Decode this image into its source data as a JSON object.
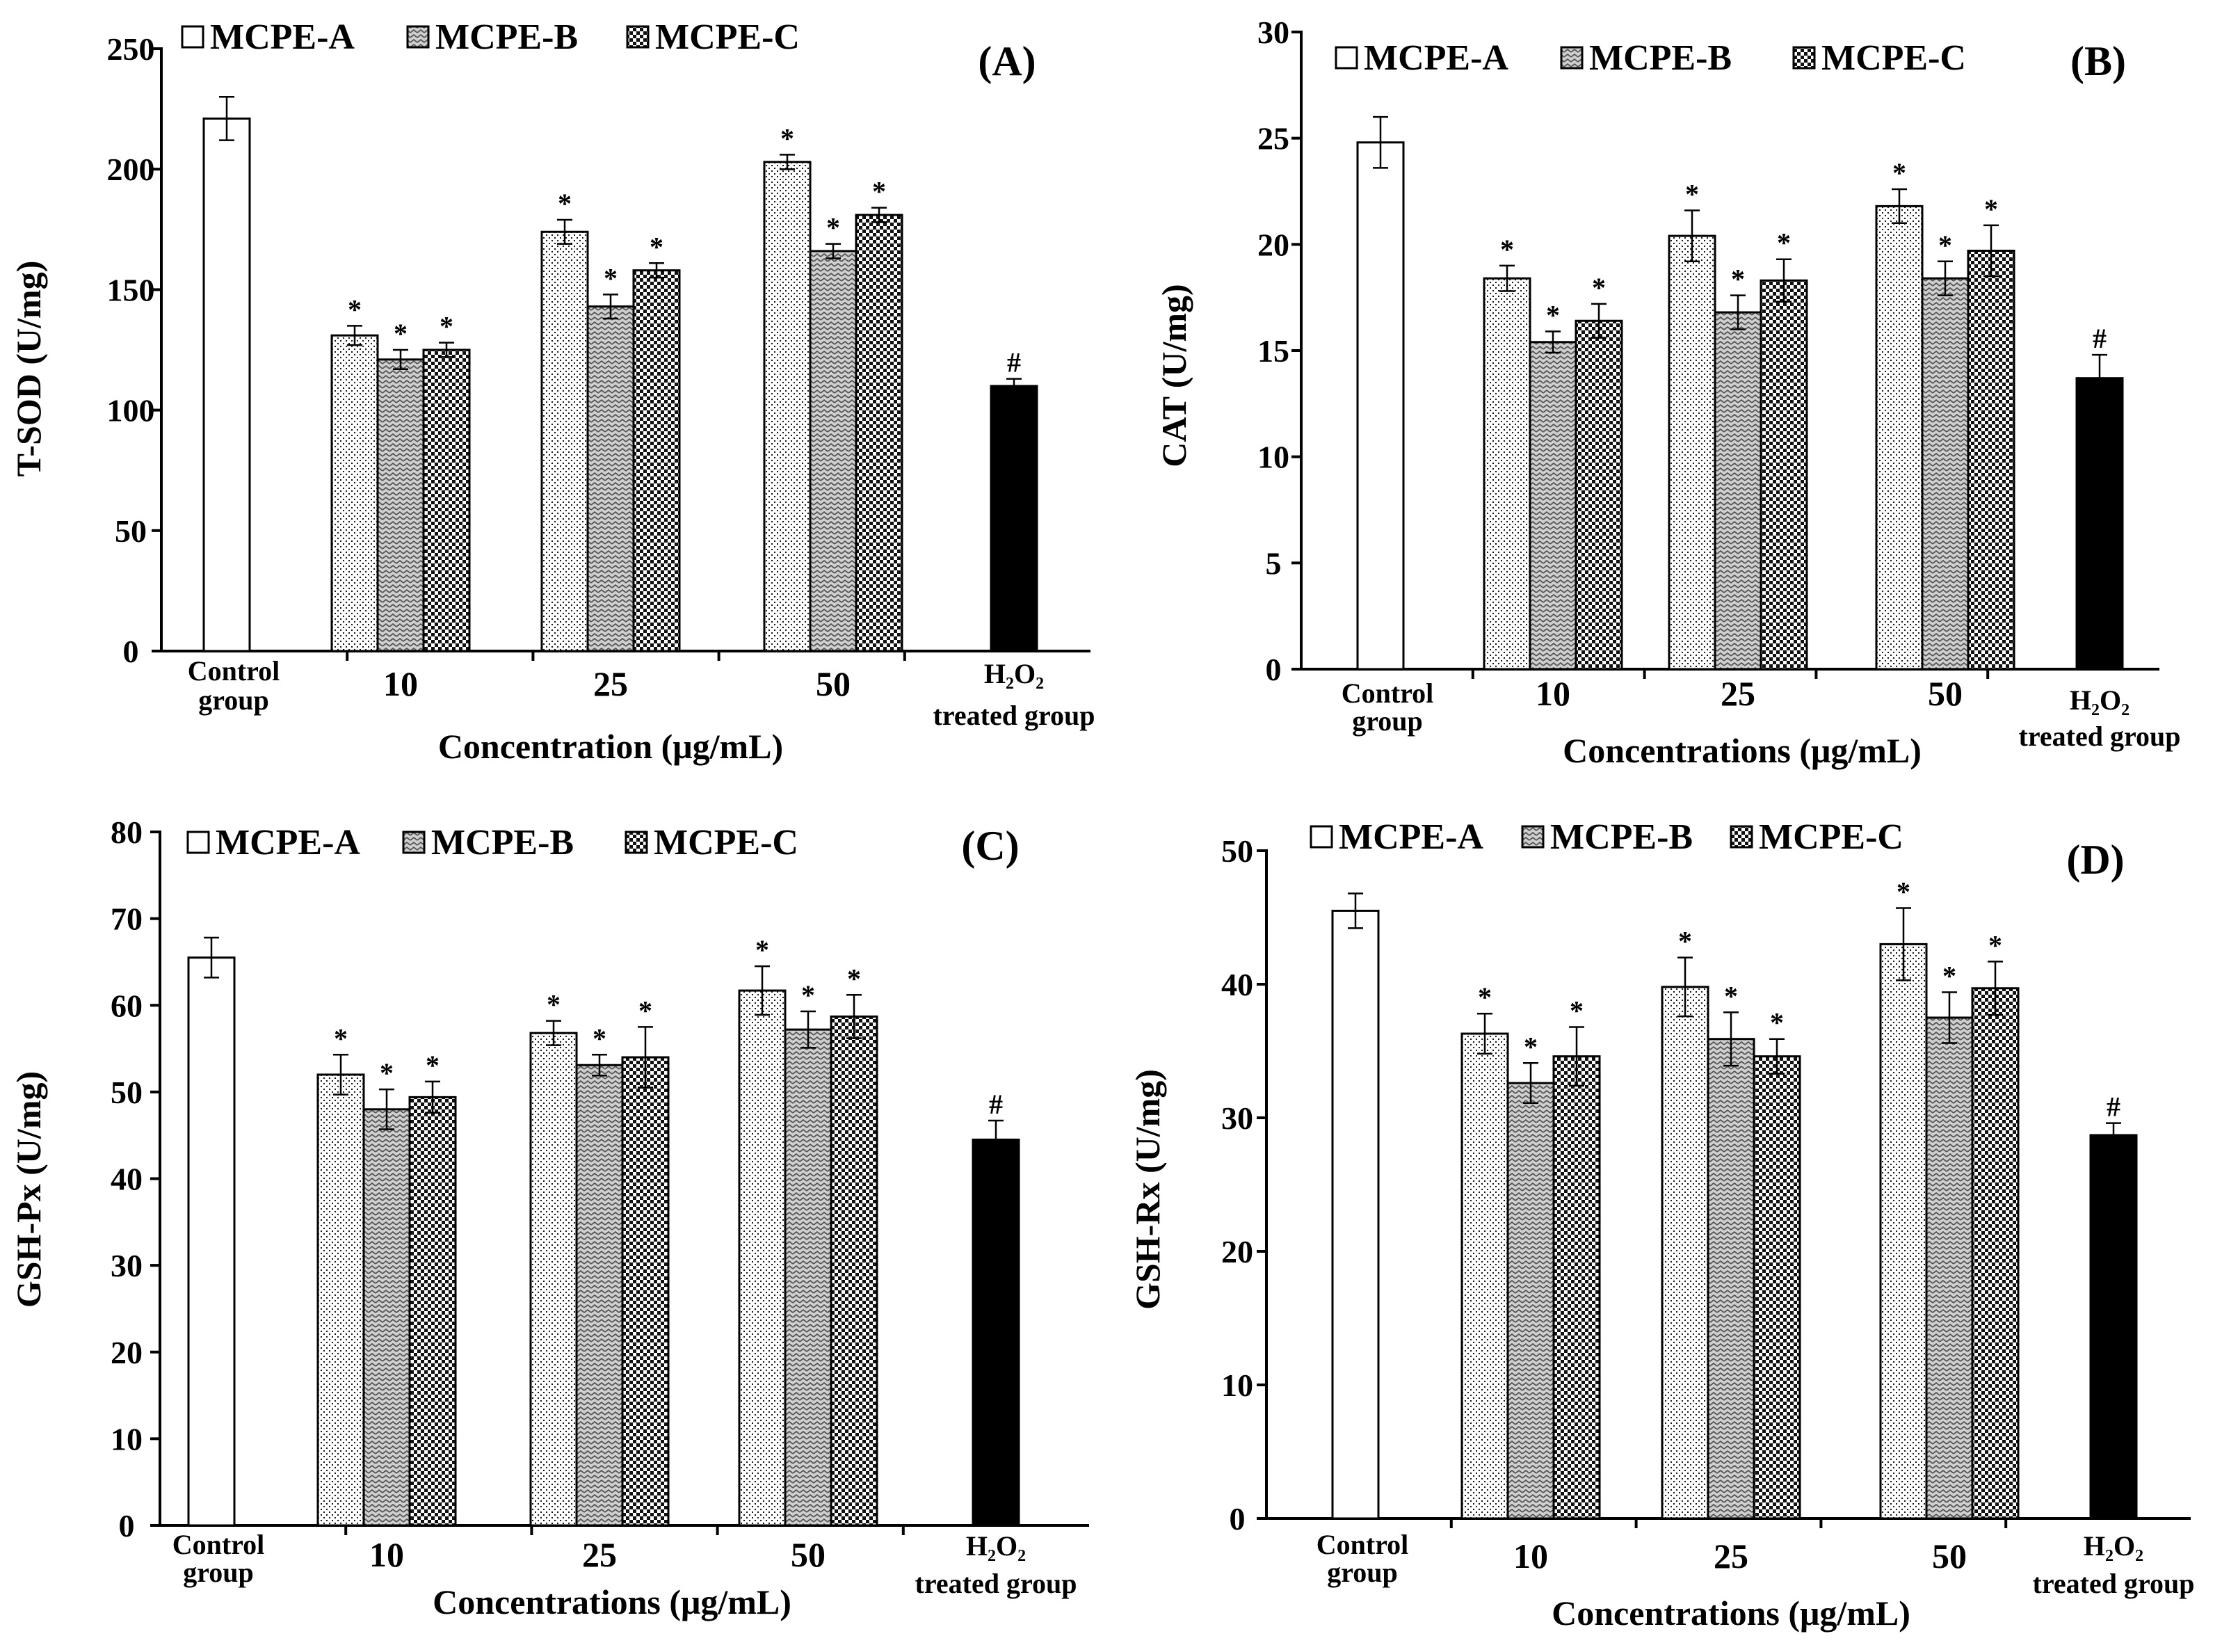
{
  "colors": {
    "bar_edge": "#000000",
    "control_fill": "#ffffff",
    "h2o2_fill": "#000000",
    "pattern_ink": "#000000"
  },
  "legend": [
    "MCPE-A",
    "MCPE-B",
    "MCPE-C"
  ],
  "chart_data": [
    {
      "type": "bar",
      "panel_label": "(A)",
      "ylabel": "T-SOD (U/mg)",
      "xlabel": "Concentration (μg/mL)",
      "ylim": [
        0,
        250
      ],
      "yticks": [
        0,
        50,
        100,
        150,
        200,
        250
      ],
      "control": {
        "label": [
          "Control",
          "group"
        ],
        "value": 221,
        "error": 9
      },
      "h2o2": {
        "label": [
          "H₂O₂",
          "treated group"
        ],
        "value": 110,
        "error": 3,
        "mark": "#"
      },
      "categories": [
        "10",
        "25",
        "50"
      ],
      "series": [
        {
          "name": "MCPE-A",
          "values": [
            131,
            174,
            203
          ],
          "errors": [
            4,
            5,
            3
          ]
        },
        {
          "name": "MCPE-B",
          "values": [
            121,
            143,
            166
          ],
          "errors": [
            4,
            5,
            3
          ]
        },
        {
          "name": "MCPE-C",
          "values": [
            125,
            158,
            181
          ],
          "errors": [
            3,
            3,
            3
          ]
        }
      ],
      "significance_mark": "*"
    },
    {
      "type": "bar",
      "panel_label": "(B)",
      "ylabel": "CAT (U/mg)",
      "xlabel": "Concentrations (μg/mL)",
      "ylim": [
        0,
        30
      ],
      "yticks": [
        0,
        5,
        10,
        15,
        20,
        25,
        30
      ],
      "control": {
        "label": [
          "Control",
          "group"
        ],
        "value": 24.8,
        "error": 1.2
      },
      "h2o2": {
        "label": [
          "H₂O₂",
          "treated group"
        ],
        "value": 13.7,
        "error": 1.1,
        "mark": "#"
      },
      "categories": [
        "10",
        "25",
        "50"
      ],
      "series": [
        {
          "name": "MCPE-A",
          "values": [
            18.4,
            20.4,
            21.8
          ],
          "errors": [
            0.6,
            1.2,
            0.8
          ]
        },
        {
          "name": "MCPE-B",
          "values": [
            15.4,
            16.8,
            18.4
          ],
          "errors": [
            0.5,
            0.8,
            0.8
          ]
        },
        {
          "name": "MCPE-C",
          "values": [
            16.4,
            18.3,
            19.7
          ],
          "errors": [
            0.8,
            1.0,
            1.2
          ]
        }
      ],
      "significance_mark": "*"
    },
    {
      "type": "bar",
      "panel_label": "(C)",
      "ylabel": "GSH-Px (U/mg)",
      "xlabel": "Concentrations (μg/mL)",
      "ylim": [
        0,
        80
      ],
      "yticks": [
        0,
        10,
        20,
        30,
        40,
        50,
        60,
        70,
        80
      ],
      "control": {
        "label": [
          "Control",
          "group"
        ],
        "value": 65.5,
        "error": 2.3
      },
      "h2o2": {
        "label": [
          "H₂O₂",
          "treated group"
        ],
        "value": 44.5,
        "error": 2.2,
        "mark": "#"
      },
      "categories": [
        "10",
        "25",
        "50"
      ],
      "series": [
        {
          "name": "MCPE-A",
          "values": [
            52,
            56.8,
            61.7
          ],
          "errors": [
            2.3,
            1.4,
            2.8
          ]
        },
        {
          "name": "MCPE-B",
          "values": [
            48,
            53.1,
            57.2
          ],
          "errors": [
            2.3,
            1.2,
            2.1
          ]
        },
        {
          "name": "MCPE-C",
          "values": [
            49.4,
            54,
            58.7
          ],
          "errors": [
            1.8,
            3.5,
            2.5
          ]
        }
      ],
      "significance_mark": "*"
    },
    {
      "type": "bar",
      "panel_label": "(D)",
      "ylabel": "GSH-Rx (U/mg)",
      "xlabel": "Concentrations (μg/mL)",
      "ylim": [
        0,
        50
      ],
      "yticks": [
        0,
        10,
        20,
        30,
        40,
        50
      ],
      "control": {
        "label": [
          "Control",
          "group"
        ],
        "value": 45.5,
        "error": 1.3
      },
      "h2o2": {
        "label": [
          "H₂O₂",
          "treated group"
        ],
        "value": 28.7,
        "error": 0.9,
        "mark": "#"
      },
      "categories": [
        "10",
        "25",
        "50"
      ],
      "series": [
        {
          "name": "MCPE-A",
          "values": [
            36.3,
            39.8,
            43
          ],
          "errors": [
            1.5,
            2.2,
            2.7
          ]
        },
        {
          "name": "MCPE-B",
          "values": [
            32.6,
            35.9,
            37.5
          ],
          "errors": [
            1.5,
            2,
            1.9
          ]
        },
        {
          "name": "MCPE-C",
          "values": [
            34.6,
            34.6,
            39.7
          ],
          "errors": [
            2.2,
            1.3,
            2
          ]
        }
      ],
      "significance_mark": "*"
    }
  ]
}
